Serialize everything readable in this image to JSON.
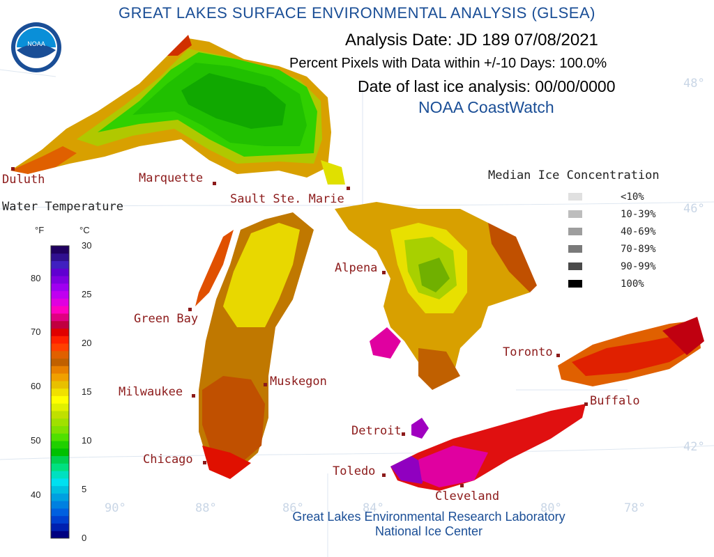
{
  "title": "GREAT LAKES SURFACE ENVIRONMENTAL ANALYSIS (GLSEA)",
  "logo": {
    "text": "NOAA",
    "icon": "noaa-logo-icon"
  },
  "header": {
    "analysis_date": "Analysis Date:  JD 189 07/08/2021",
    "percent_pixels": "Percent Pixels with Data within +/-10 Days: 100.0%",
    "last_ice": "Date of last ice analysis: 00/00/0000",
    "source": "NOAA CoastWatch"
  },
  "cities": [
    {
      "name": "Duluth"
    },
    {
      "name": "Marquette"
    },
    {
      "name": "Sault Ste. Marie"
    },
    {
      "name": "Green Bay"
    },
    {
      "name": "Milwaukee"
    },
    {
      "name": "Muskegon"
    },
    {
      "name": "Chicago"
    },
    {
      "name": "Alpena"
    },
    {
      "name": "Detroit"
    },
    {
      "name": "Toledo"
    },
    {
      "name": "Cleveland"
    },
    {
      "name": "Toronto"
    },
    {
      "name": "Buffalo"
    }
  ],
  "grid_labels": [
    "48°",
    "46°",
    "42°",
    "90°",
    "88°",
    "86°",
    "84°",
    "80°",
    "78°"
  ],
  "water_legend": {
    "title": "Water Temperature",
    "f_unit": "°F",
    "c_unit": "°C",
    "f_ticks": [
      "80",
      "70",
      "60",
      "50",
      "40"
    ],
    "c_ticks": [
      "30",
      "25",
      "20",
      "15",
      "10",
      "5",
      "0"
    ],
    "colors": [
      "#000080",
      "#0020b0",
      "#0040d0",
      "#0060e0",
      "#0080e0",
      "#00a0e0",
      "#00c0e0",
      "#00e0f0",
      "#00e0c0",
      "#00e080",
      "#00d050",
      "#00c000",
      "#20d000",
      "#50e000",
      "#80e000",
      "#a0e000",
      "#c0e000",
      "#e0f000",
      "#ffff00",
      "#f0e000",
      "#e8c000",
      "#f0a000",
      "#e88000",
      "#c06000",
      "#e06000",
      "#ff4000",
      "#ff2000",
      "#e00000",
      "#c00040",
      "#e00080",
      "#ff00c0",
      "#e000e0",
      "#c000f0",
      "#a000f0",
      "#8000e0",
      "#6000d0",
      "#4020c0",
      "#301090",
      "#200060"
    ]
  },
  "ice_legend": {
    "title": "Median Ice Concentration",
    "items": [
      {
        "label": "<10%",
        "color": "#e0e0e0"
      },
      {
        "label": "10-39%",
        "color": "#bdbdbd"
      },
      {
        "label": "40-69%",
        "color": "#9e9e9e"
      },
      {
        "label": "70-89%",
        "color": "#7a7a7a"
      },
      {
        "label": "90-99%",
        "color": "#4a4a4a"
      },
      {
        "label": "100%",
        "color": "#000000"
      }
    ]
  },
  "footer": {
    "line1": "Great Lakes Environmental Research Laboratory",
    "line2": "National Ice Center"
  }
}
